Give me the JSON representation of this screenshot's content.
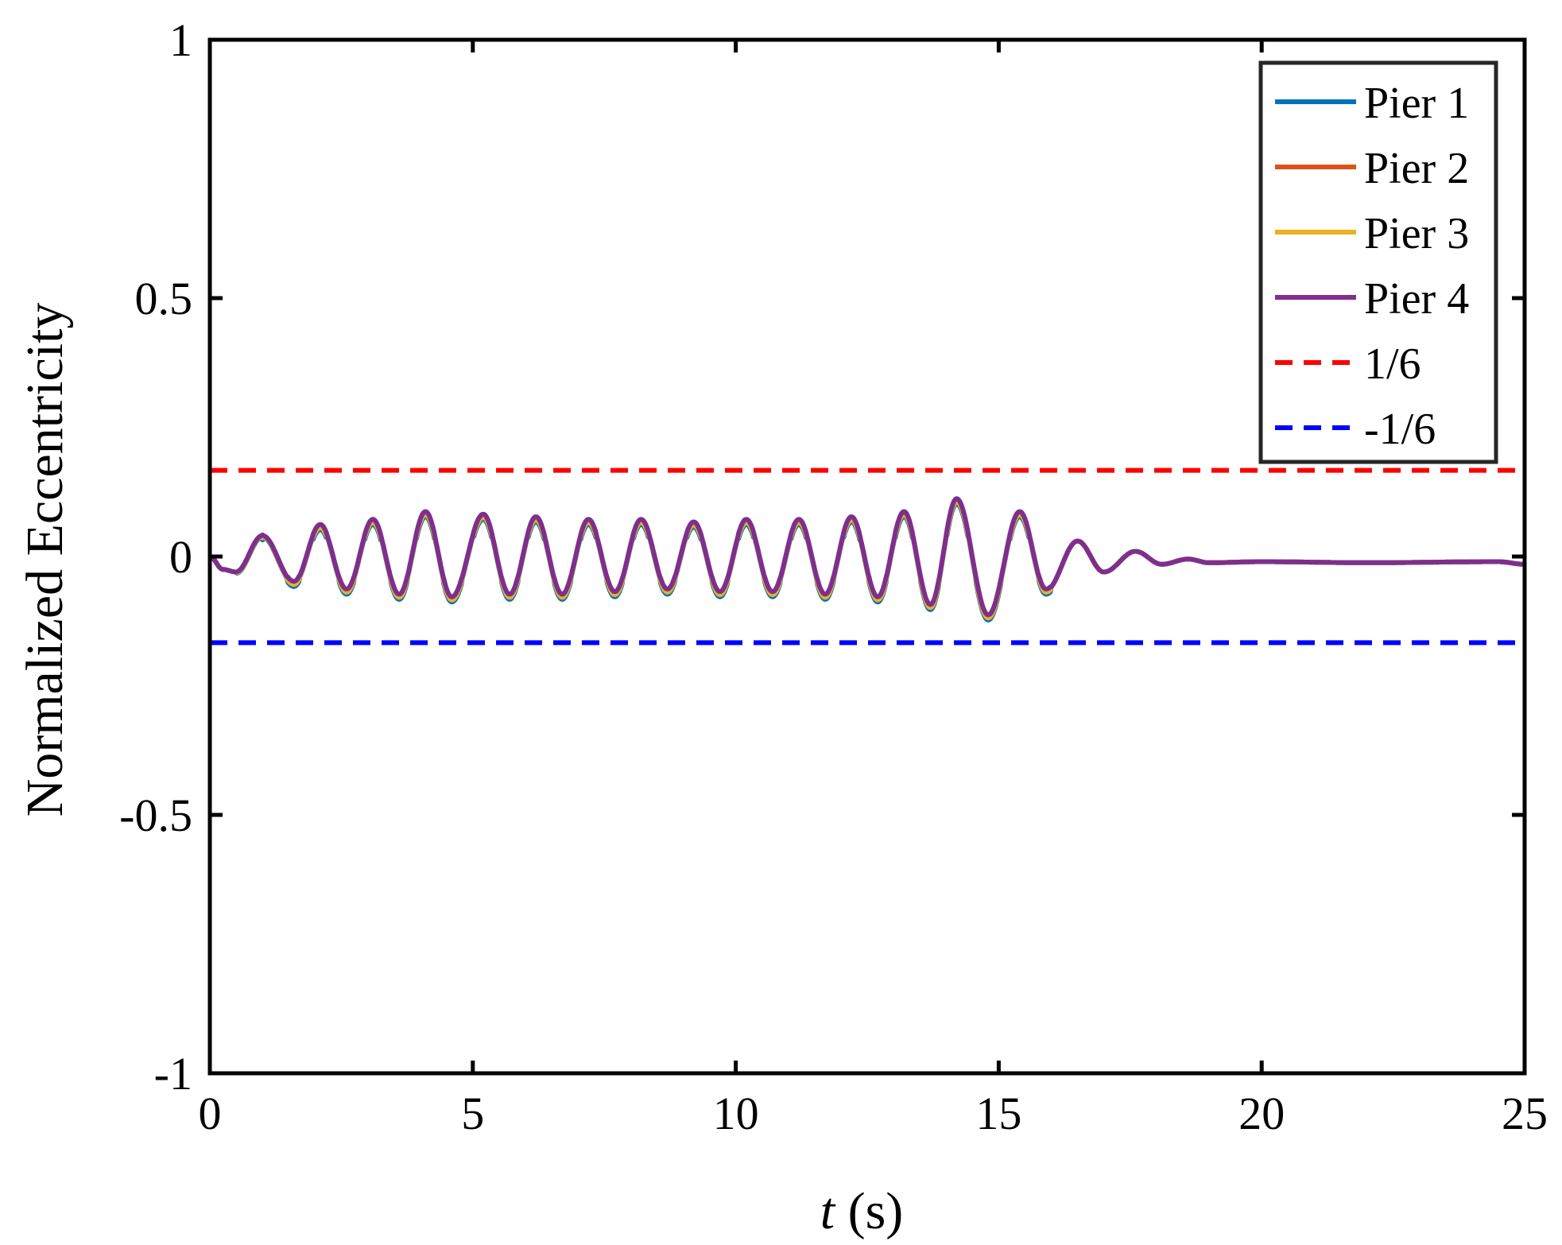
{
  "chart_data": {
    "type": "line",
    "xlabel_var": "t",
    "xlabel_unit": " (s)",
    "ylabel": "Normalized Eccentricity",
    "xlim": [
      0,
      25
    ],
    "ylim": [
      -1,
      1
    ],
    "xticks": [
      0,
      5,
      10,
      15,
      20,
      25
    ],
    "yticks": [
      -1,
      -0.5,
      0,
      0.5,
      1
    ],
    "xtick_labels": [
      "0",
      "5",
      "10",
      "15",
      "20",
      "25"
    ],
    "ytick_labels": [
      "-1",
      "-0.5",
      "0",
      "0.5",
      "1"
    ],
    "grid": false,
    "legend_position": "top-right",
    "series": [
      {
        "name": "Pier 1",
        "color": "#0072BD",
        "style": "solid",
        "offset": -0.008
      },
      {
        "name": "Pier 2",
        "color": "#D95319",
        "style": "solid",
        "offset": 0.0
      },
      {
        "name": "Pier 3",
        "color": "#EDB120",
        "style": "solid",
        "offset": -0.004
      },
      {
        "name": "Pier 4",
        "color": "#7E2F8E",
        "style": "solid",
        "offset": 0.002
      },
      {
        "name": "1/6",
        "color": "#FF0000",
        "style": "dashed",
        "constant": 0.1667
      },
      {
        "name": "-1/6",
        "color": "#0000FF",
        "style": "dashed",
        "constant": -0.1667
      }
    ],
    "response": {
      "x": [
        0,
        0.25,
        0.5,
        1.0,
        1.6,
        2.1,
        2.6,
        3.1,
        3.6,
        4.1,
        4.6,
        5.2,
        5.7,
        6.2,
        6.7,
        7.2,
        7.7,
        8.2,
        8.7,
        9.2,
        9.7,
        10.2,
        10.7,
        11.2,
        11.7,
        12.2,
        12.7,
        13.2,
        13.7,
        14.2,
        14.8,
        15.4,
        15.9,
        16.5,
        17.0,
        17.6,
        18.1,
        18.6,
        19.0,
        20.0,
        22.0,
        24.5,
        25.0
      ],
      "y": [
        0.0,
        -0.025,
        -0.03,
        0.04,
        -0.05,
        0.06,
        -0.065,
        0.07,
        -0.075,
        0.085,
        -0.08,
        0.08,
        -0.075,
        0.075,
        -0.075,
        0.07,
        -0.07,
        0.07,
        -0.065,
        0.065,
        -0.07,
        0.07,
        -0.07,
        0.07,
        -0.075,
        0.075,
        -0.08,
        0.085,
        -0.095,
        0.11,
        -0.115,
        0.085,
        -0.065,
        0.03,
        -0.03,
        0.01,
        -0.015,
        -0.005,
        -0.012,
        -0.01,
        -0.012,
        -0.01,
        -0.015
      ]
    }
  }
}
